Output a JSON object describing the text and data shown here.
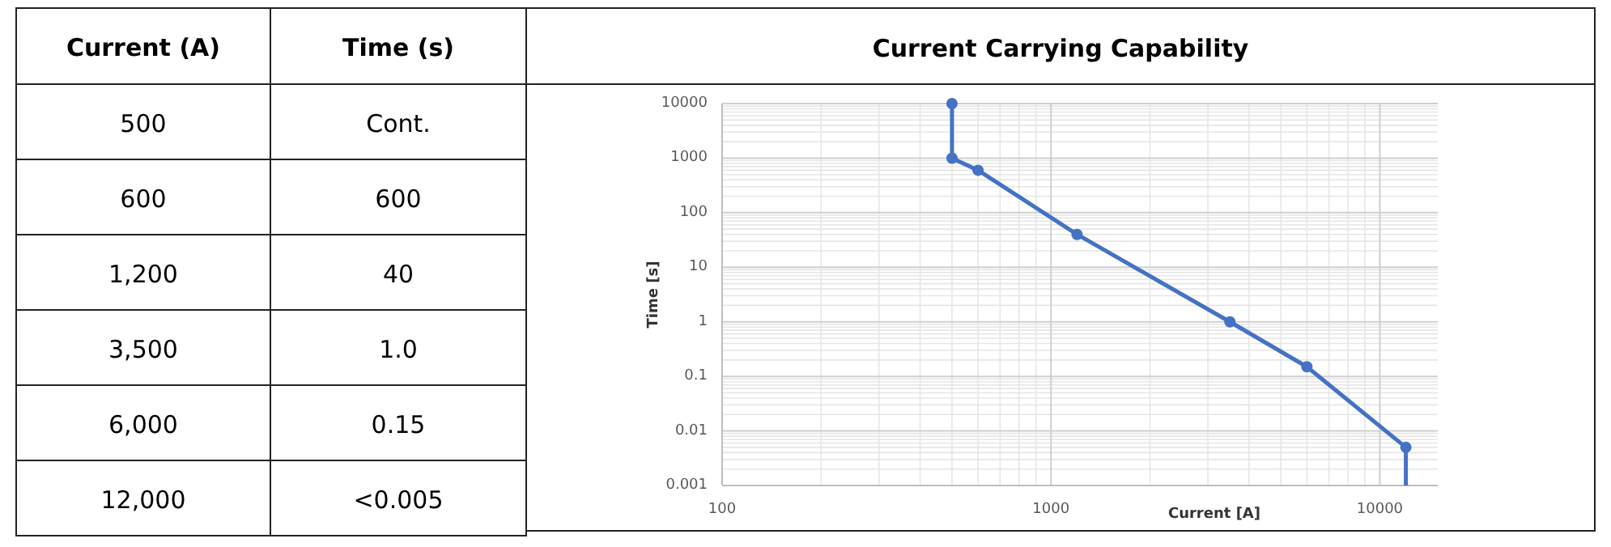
{
  "chart_data": [
    {
      "type": "other",
      "xlabel": "Current (A)",
      "ylabel": "Time (s)",
      "categories": [
        "500",
        "600",
        "1,200",
        "3,500",
        "6,000",
        "12,000"
      ],
      "value_labels": [
        "Cont.",
        "600",
        "40",
        "1.0",
        "0.15",
        "<0.005"
      ]
    },
    {
      "type": "line",
      "title": "Current Carrying Capability",
      "xlabel": "Current [A]",
      "ylabel": "Time [s]",
      "log": "xy",
      "grid": true,
      "xlim": [
        100,
        15000
      ],
      "xticks": [
        100,
        1000,
        10000
      ],
      "ylim": [
        0.001,
        10000
      ],
      "yticks": [
        0.001,
        0.01,
        0.1,
        1,
        10,
        100,
        1000,
        10000
      ],
      "series": [
        {
          "color": "#4472c4",
          "marker": "circle",
          "x": [
            500,
            500,
            600,
            1200,
            3500,
            6000,
            12000
          ],
          "values": [
            10000,
            1000,
            600,
            40,
            1,
            0.15,
            0.005
          ]
        },
        {
          "color": "#4472c4",
          "marker": "none",
          "x": [
            12000,
            12000
          ],
          "values": [
            0.005,
            0.001
          ]
        }
      ]
    }
  ]
}
